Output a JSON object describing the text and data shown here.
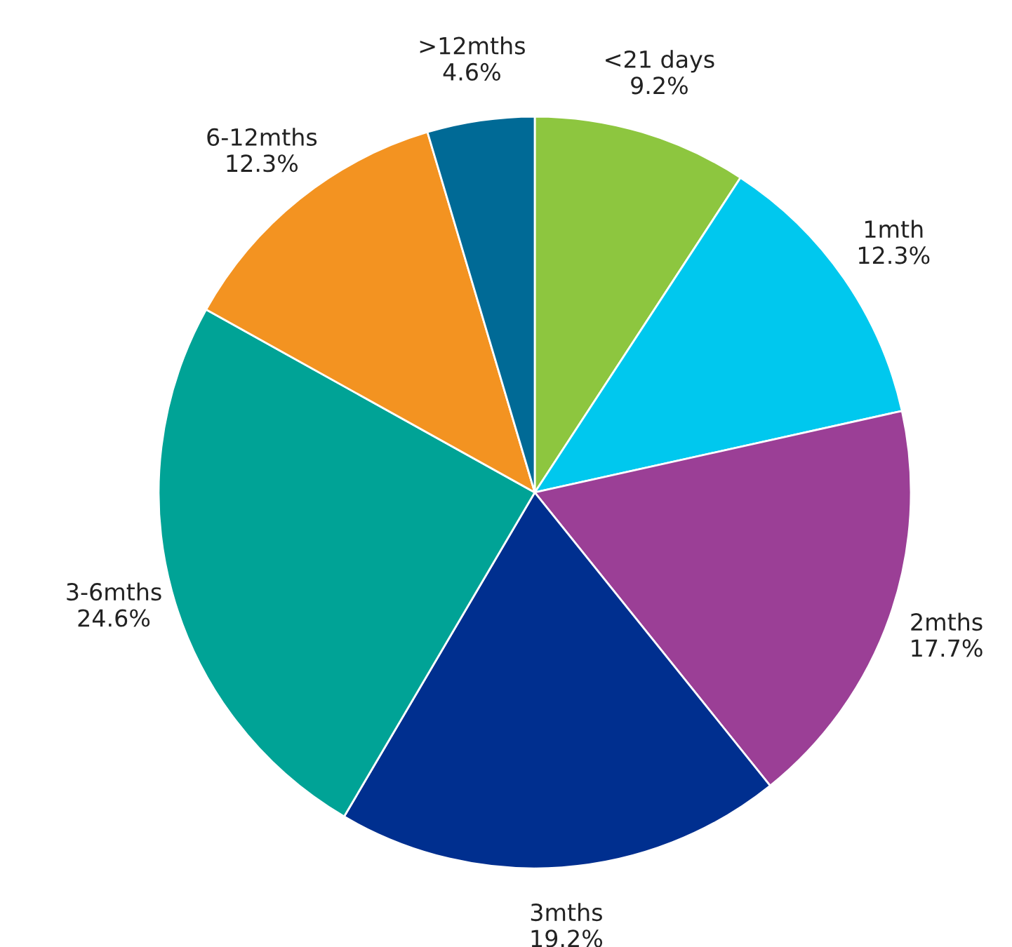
{
  "chart_data": {
    "type": "pie",
    "categories": [
      "<21 days",
      "1mth",
      "2mths",
      "3mths",
      "3-6mths",
      "6-12mths",
      ">12mths"
    ],
    "values": [
      9.2,
      12.3,
      17.7,
      19.2,
      24.6,
      12.3,
      4.6
    ],
    "value_labels": [
      "9.2%",
      "12.3%",
      "17.7%",
      "19.2%",
      "24.6%",
      "12.3%",
      "4.6%"
    ],
    "colors": [
      "#8dc63f",
      "#00c8ee",
      "#9b3f96",
      "#002f8f",
      "#00a396",
      "#f39321",
      "#006a96"
    ],
    "legend": false
  }
}
